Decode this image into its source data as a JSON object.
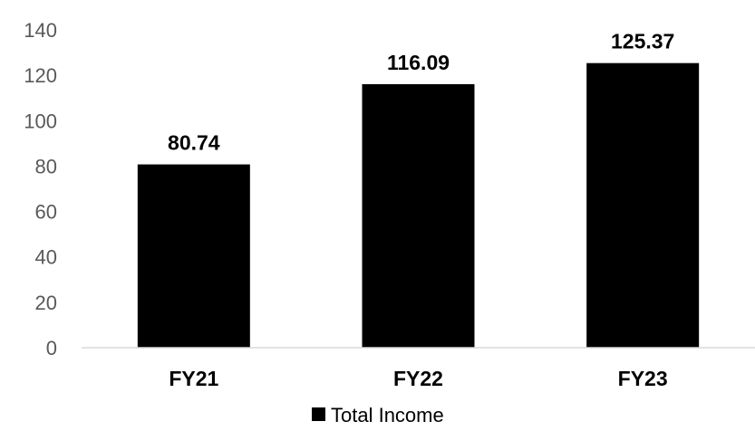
{
  "chart_data": {
    "type": "bar",
    "categories": [
      "FY21",
      "FY22",
      "FY23"
    ],
    "series": [
      {
        "name": "Total Income",
        "values": [
          80.74,
          116.09,
          125.37
        ],
        "color": "#000000"
      }
    ],
    "data_labels": [
      "80.74",
      "116.09",
      "125.37"
    ],
    "y_ticks": [
      "0",
      "20",
      "40",
      "60",
      "80",
      "100",
      "120",
      "140"
    ],
    "ylim": [
      0,
      140
    ],
    "title": "",
    "xlabel": "",
    "ylabel": "",
    "grid": false,
    "legend_position": "bottom",
    "axis_color": "#d9d9d9",
    "tick_label_color": "#595959"
  }
}
